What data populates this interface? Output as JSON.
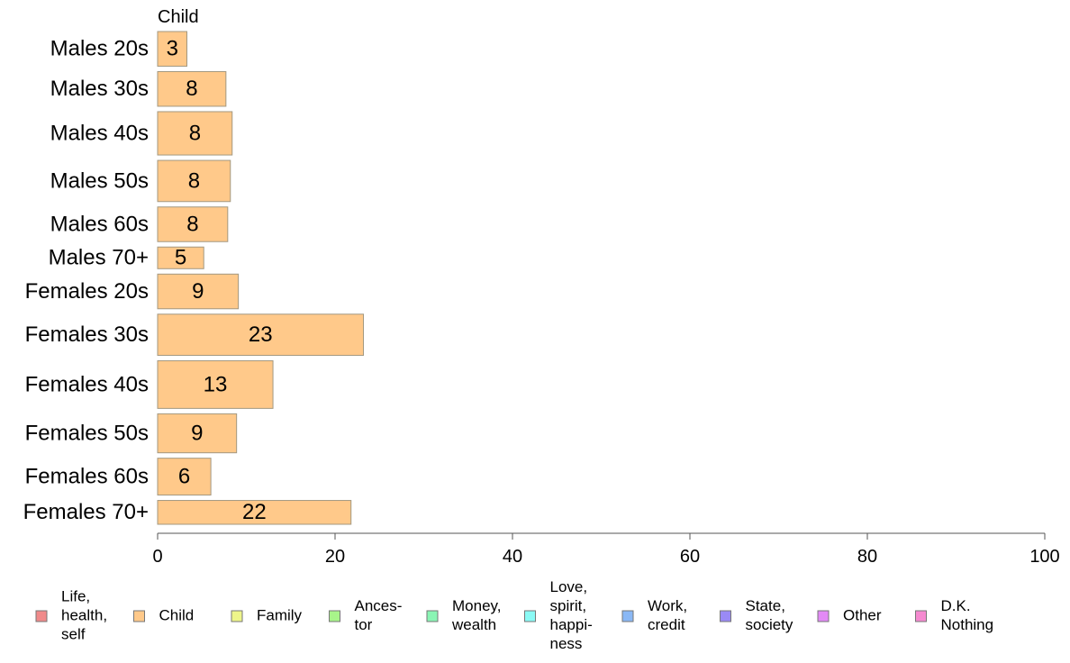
{
  "chart_data": {
    "type": "bar",
    "orientation": "horizontal",
    "title": "Child",
    "categories": [
      "Males 20s",
      "Males 30s",
      "Males 40s",
      "Males 50s",
      "Males 60s",
      "Males 70+",
      "Females 20s",
      "Females 30s",
      "Females 40s",
      "Females 50s",
      "Females 60s",
      "Females 70+"
    ],
    "values": [
      3.3,
      7.7,
      8.4,
      8.2,
      7.9,
      5.2,
      9.1,
      23.2,
      13.0,
      8.9,
      6.0,
      21.8
    ],
    "value_labels": [
      "3",
      "8",
      "8",
      "8",
      "8",
      "5",
      "9",
      "23",
      "13",
      "9",
      "6",
      "22"
    ],
    "relative_widths": [
      0.8,
      0.8,
      1.0,
      0.95,
      0.8,
      0.5,
      0.8,
      0.95,
      1.1,
      0.9,
      0.85,
      0.55
    ],
    "xlim": [
      0,
      100
    ],
    "xticks": [
      "0",
      "20",
      "40",
      "60",
      "80",
      "100"
    ],
    "bar_color": "#ffc98a",
    "bar_stroke": "#a39880",
    "legend_position": "bottom",
    "legend": [
      {
        "lines": [
          "Life,",
          "health,",
          "self"
        ],
        "color": "#f08a8a"
      },
      {
        "lines": [
          "Child"
        ],
        "color": "#ffc98a"
      },
      {
        "lines": [
          "Family"
        ],
        "color": "#eef58a"
      },
      {
        "lines": [
          "Ances-",
          "tor"
        ],
        "color": "#a8f58a"
      },
      {
        "lines": [
          "Money,",
          "wealth"
        ],
        "color": "#8af5b4"
      },
      {
        "lines": [
          "Love,",
          "spirit,",
          "happi-",
          "ness"
        ],
        "color": "#8afaf5"
      },
      {
        "lines": [
          "Work,",
          "credit"
        ],
        "color": "#8ab8f5"
      },
      {
        "lines": [
          "State,",
          "society"
        ],
        "color": "#9a8af5"
      },
      {
        "lines": [
          "Other"
        ],
        "color": "#e28af5"
      },
      {
        "lines": [
          "D.K.",
          "Nothing"
        ],
        "color": "#f58ad0"
      }
    ]
  }
}
